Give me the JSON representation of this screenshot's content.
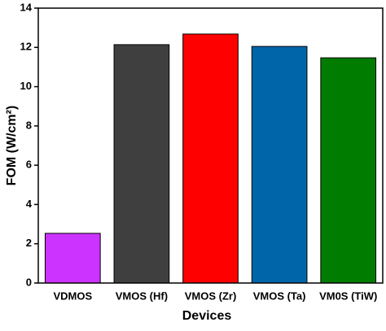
{
  "chart_data": {
    "type": "bar",
    "x_label": "Devices",
    "y_label": "FOM (W/cm²)",
    "categories": [
      "VDMOS",
      "VMOS (Hf)",
      "VMOS (Zr)",
      "VMOS (Ta)",
      "VM0S (TiW)"
    ],
    "values": [
      2.53,
      12.14,
      12.68,
      12.05,
      11.47
    ],
    "colors": [
      "#cc33ff",
      "#3f3f3f",
      "#ff0000",
      "#0066aa",
      "#007c00"
    ],
    "ylim": [
      0,
      14
    ],
    "yticks": [
      0,
      2,
      4,
      6,
      8,
      10,
      12,
      14
    ]
  }
}
